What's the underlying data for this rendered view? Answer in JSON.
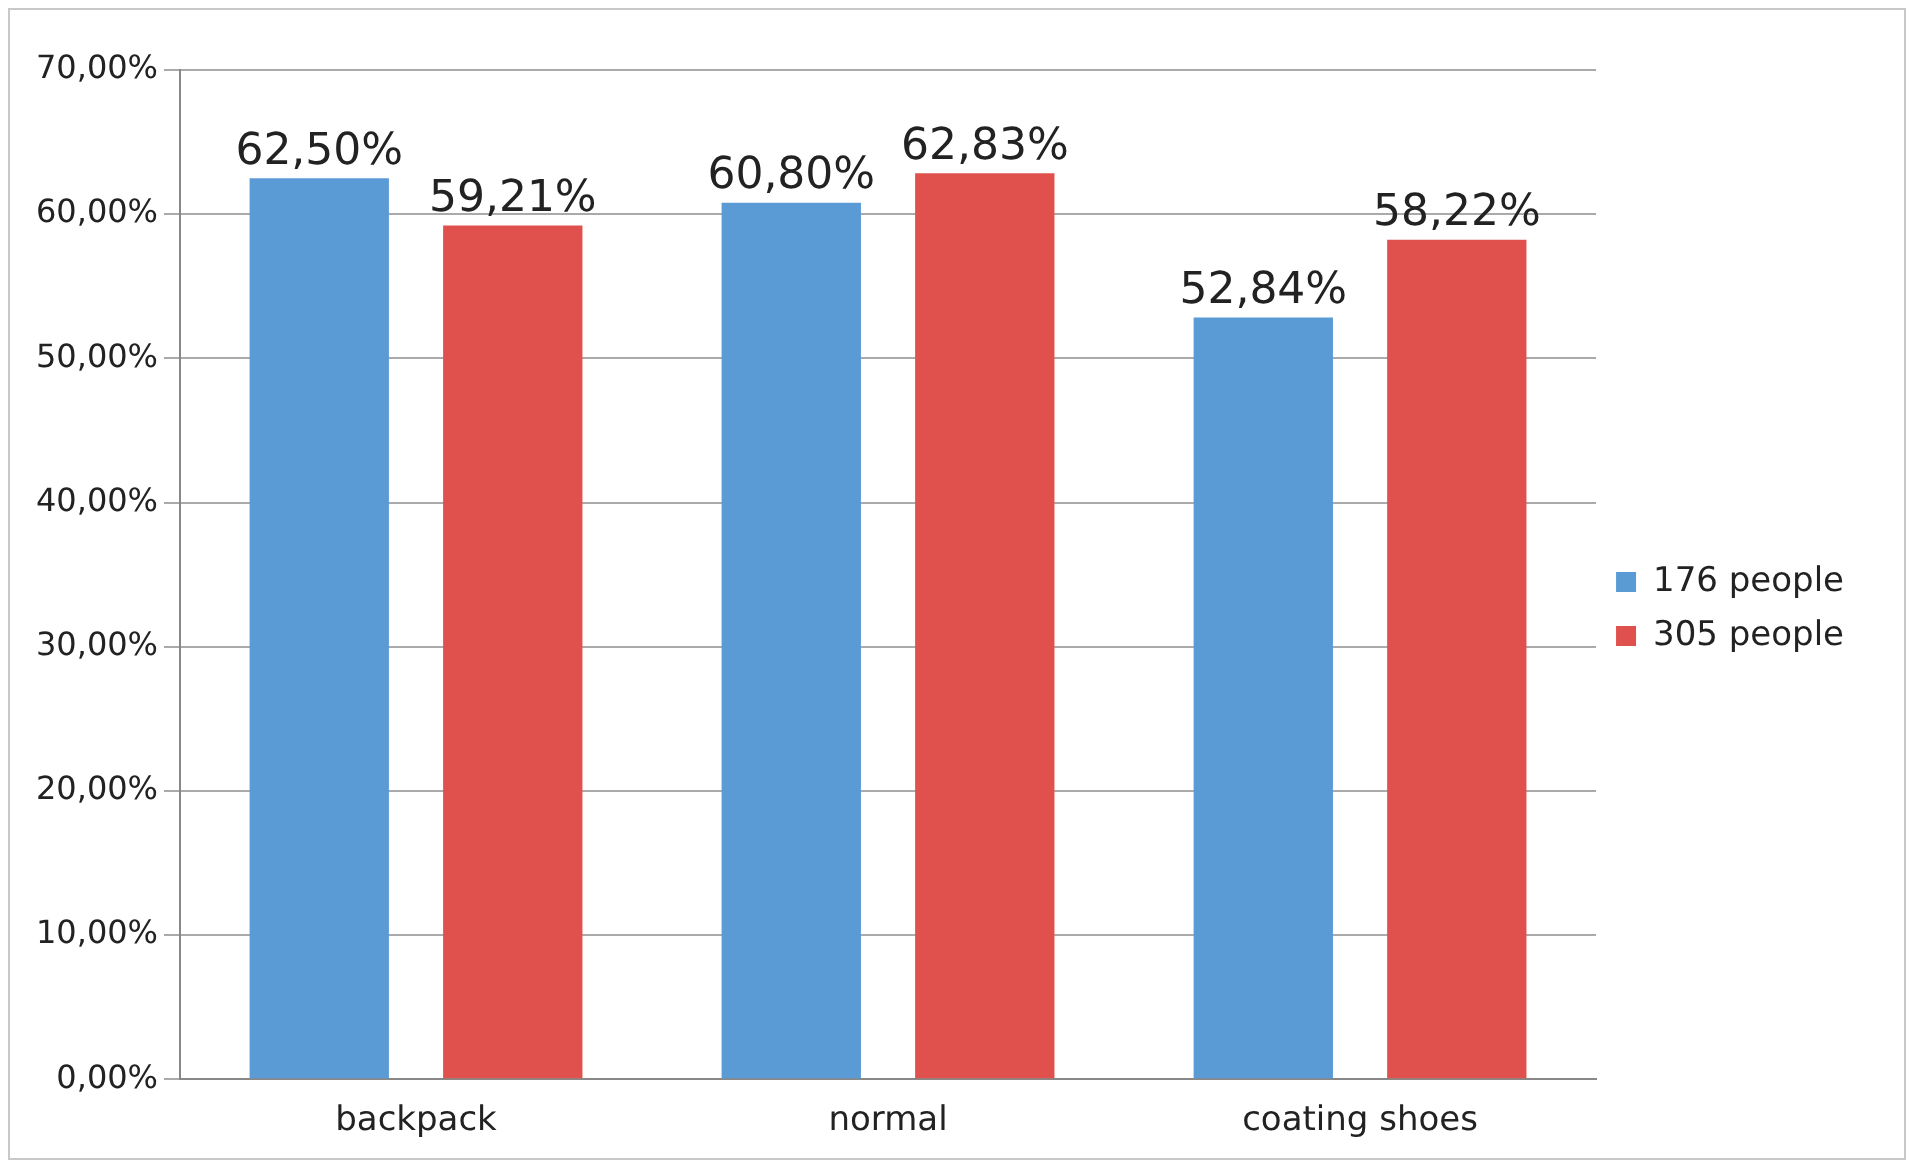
{
  "chart_data": {
    "type": "bar",
    "categories": [
      "backpack",
      "normal",
      "coating shoes"
    ],
    "series": [
      {
        "name": "176 people",
        "color": "#5b9bd5",
        "values": [
          62.5,
          60.8,
          52.84
        ],
        "value_labels": [
          "62,50%",
          "60,80%",
          "52,84%"
        ]
      },
      {
        "name": "305 people",
        "color": "#e0504d",
        "values": [
          59.21,
          62.83,
          58.22
        ],
        "value_labels": [
          "59,21%",
          "62,83%",
          "58,22%"
        ]
      }
    ],
    "ylim": [
      0,
      70
    ],
    "yticks": [
      {
        "value": 0,
        "label": "0,00%"
      },
      {
        "value": 10,
        "label": "10,00%"
      },
      {
        "value": 20,
        "label": "20,00%"
      },
      {
        "value": 30,
        "label": "30,00%"
      },
      {
        "value": 40,
        "label": "40,00%"
      },
      {
        "value": 50,
        "label": "50,00%"
      },
      {
        "value": 60,
        "label": "60,00%"
      },
      {
        "value": 70,
        "label": "70,00%"
      }
    ],
    "grid": "y",
    "legend": "right"
  }
}
